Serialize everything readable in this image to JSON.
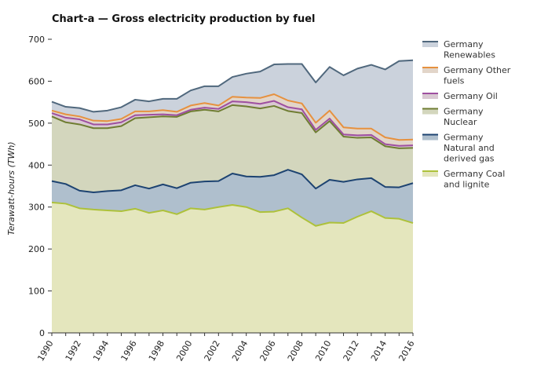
{
  "chart_data": {
    "type": "area",
    "stacked": true,
    "title": "Chart-a — Gross electricity production by fuel",
    "xlabel": "",
    "ylabel": "Terawatt-hours (TWh)",
    "ylim": [
      0,
      700
    ],
    "yticks": [
      0,
      100,
      200,
      300,
      400,
      500,
      600,
      700
    ],
    "x": [
      1990,
      1991,
      1992,
      1993,
      1994,
      1995,
      1996,
      1997,
      1998,
      1999,
      2000,
      2001,
      2002,
      2003,
      2004,
      2005,
      2006,
      2007,
      2008,
      2009,
      2010,
      2011,
      2012,
      2013,
      2014,
      2015,
      2016
    ],
    "xtick_labels": [
      "1990",
      "1992",
      "1994",
      "1996",
      "1998",
      "2000",
      "2002",
      "2004",
      "2006",
      "2008",
      "2010",
      "2012",
      "2014",
      "2016"
    ],
    "legend_position": "right",
    "series": [
      {
        "name": "Germany Coal and lignite",
        "legend_lines": [
          "Germany Coal",
          "and lignite"
        ],
        "fill": "#e4e6bd",
        "line": "#adc13a",
        "values": [
          311,
          308,
          297,
          294,
          292,
          290,
          296,
          286,
          292,
          283,
          297,
          294,
          300,
          305,
          300,
          288,
          289,
          297,
          275,
          255,
          263,
          262,
          277,
          290,
          274,
          272,
          262
        ]
      },
      {
        "name": "Germany Natural and derived gas",
        "legend_lines": [
          "Germany",
          "Natural and",
          "derived gas"
        ],
        "fill": "#afbfcd",
        "line": "#1d4371",
        "values": [
          362,
          355,
          339,
          335,
          338,
          340,
          352,
          344,
          354,
          345,
          358,
          361,
          362,
          380,
          373,
          372,
          376,
          389,
          378,
          344,
          365,
          360,
          366,
          369,
          348,
          347,
          357
        ]
      },
      {
        "name": "Germany Nuclear",
        "legend_lines": [
          "Germany",
          "Nuclear"
        ],
        "fill": "#d3d6bd",
        "line": "#6f7d32",
        "values": [
          516,
          502,
          497,
          488,
          488,
          493,
          512,
          514,
          516,
          515,
          528,
          532,
          528,
          543,
          540,
          535,
          541,
          529,
          524,
          478,
          505,
          468,
          465,
          466,
          445,
          440,
          441
        ]
      },
      {
        "name": "Germany Oil",
        "legend_lines": [
          "Germany Oil"
        ],
        "fill": "#d9c9d2",
        "line": "#9e4fa0",
        "values": [
          524,
          513,
          509,
          497,
          497,
          502,
          519,
          520,
          521,
          519,
          532,
          537,
          534,
          552,
          550,
          546,
          553,
          538,
          533,
          484,
          511,
          473,
          471,
          472,
          450,
          446,
          447
        ]
      },
      {
        "name": "Germany Other fuels",
        "legend_lines": [
          "Germany Other",
          "fuels"
        ],
        "fill": "#e2d5c9",
        "line": "#e6913f",
        "values": [
          530,
          521,
          516,
          506,
          505,
          510,
          528,
          528,
          531,
          527,
          542,
          548,
          542,
          563,
          561,
          560,
          569,
          554,
          547,
          501,
          530,
          490,
          487,
          487,
          466,
          460,
          461
        ]
      },
      {
        "name": "Germany Renewables",
        "legend_lines": [
          "Germany",
          "Renewables"
        ],
        "fill": "#cbd2dc",
        "line": "#50687d",
        "values": [
          551,
          539,
          536,
          527,
          530,
          538,
          556,
          552,
          558,
          558,
          578,
          588,
          588,
          610,
          618,
          623,
          640,
          641,
          641,
          597,
          634,
          614,
          630,
          639,
          628,
          648,
          650
        ]
      }
    ]
  }
}
